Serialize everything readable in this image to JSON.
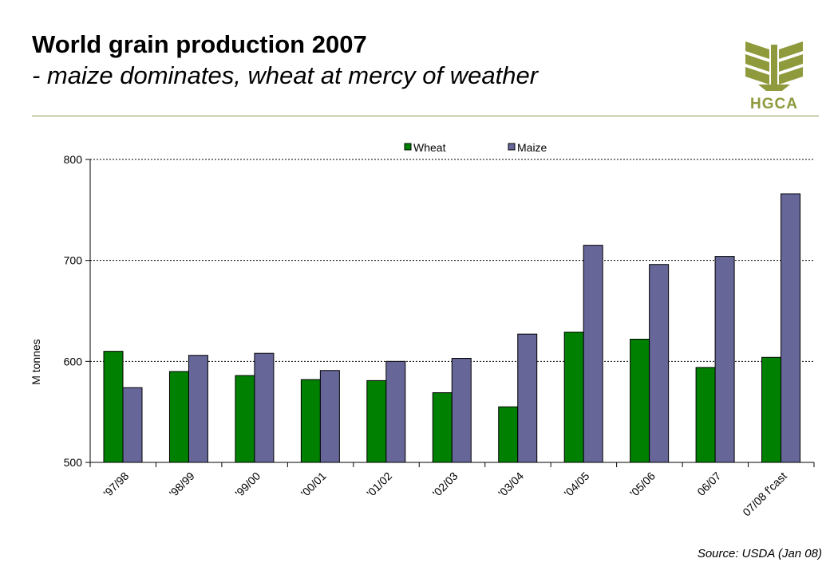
{
  "header": {
    "title": "World grain production 2007",
    "subtitle": "- maize dominates, wheat at mercy of weather"
  },
  "logo": {
    "text": "HGCA",
    "color": "#8f9a3c",
    "icon": "wheat-sheaf-icon"
  },
  "source": "Source: USDA (Jan 08)",
  "colors": {
    "wheat": "#008000",
    "maize": "#666699",
    "rule": "#8a9a55"
  },
  "chart_data": {
    "type": "bar",
    "categories": [
      "'97/98",
      "'98/99",
      "'99/00",
      "'00/01",
      "'01/02",
      "'02/03",
      "'03/04",
      "'04/05",
      "'05/06",
      "06/07",
      "07/08 f'cast"
    ],
    "series": [
      {
        "name": "Wheat",
        "color": "#008000",
        "values": [
          610,
          590,
          586,
          582,
          581,
          569,
          555,
          629,
          622,
          594,
          604
        ]
      },
      {
        "name": "Maize",
        "color": "#666699",
        "values": [
          574,
          606,
          608,
          591,
          600,
          603,
          627,
          715,
          696,
          704,
          766
        ]
      }
    ],
    "xlabel": "",
    "ylabel": "M tonnes",
    "ylim": [
      500,
      800
    ],
    "yticks": [
      500,
      600,
      700,
      800
    ],
    "grid": true,
    "legend": "top-center"
  }
}
